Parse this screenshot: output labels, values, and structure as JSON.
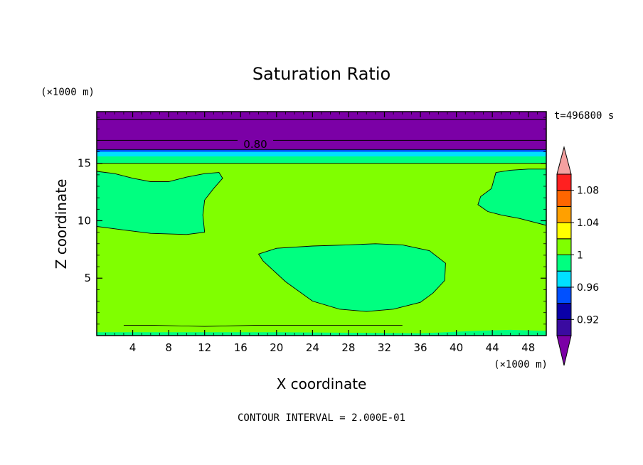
{
  "chart_data": {
    "type": "contour",
    "title": "Saturation Ratio",
    "xlabel": "X coordinate",
    "ylabel": "Z coordinate",
    "x_unit": "(×1000 m)",
    "z_unit": "(×1000 m)",
    "time_label": "t=496800 s",
    "footer": "CONTOUR INTERVAL = 2.000E-01",
    "contour_label": "0.80",
    "xlim": [
      0,
      50
    ],
    "zlim": [
      0,
      19.5
    ],
    "x_ticks": [
      4,
      8,
      12,
      16,
      20,
      24,
      28,
      32,
      36,
      40,
      44,
      48
    ],
    "z_ticks": [
      5,
      10,
      15
    ],
    "fill_levels": [
      {
        "range": "< 0.90",
        "color": "#7b00a6"
      },
      {
        "range": "0.90-0.92",
        "color": "#3a0aa0"
      },
      {
        "range": "0.92-0.94",
        "color": "#0a00a8"
      },
      {
        "range": "0.94-0.96",
        "color": "#0050ff"
      },
      {
        "range": "0.96-0.98",
        "color": "#00e0ff"
      },
      {
        "range": "0.98-1.00",
        "color": "#00ff80"
      },
      {
        "range": "1.00-1.02",
        "color": "#80ff00"
      },
      {
        "range": "1.02-1.04",
        "color": "#ffff00"
      },
      {
        "range": "1.04-1.06",
        "color": "#ffa000"
      },
      {
        "range": "1.06-1.08",
        "color": "#ff6600"
      },
      {
        "range": "1.08-1.10",
        "color": "#ff2020"
      },
      {
        "range": "> 1.10",
        "color": "#f4a0a0"
      }
    ],
    "colorbar_labels": [
      {
        "value": 0.92,
        "label": "0.92"
      },
      {
        "value": 0.96,
        "label": "0.96"
      },
      {
        "value": 1.0,
        "label": "1"
      },
      {
        "value": 1.04,
        "label": "1.04"
      },
      {
        "value": 1.08,
        "label": "1.08"
      }
    ],
    "regions": [
      {
        "name": "background",
        "color": "#80ff00",
        "points": [
          [
            0,
            0
          ],
          [
            50,
            0
          ],
          [
            50,
            15
          ],
          [
            0,
            15
          ]
        ]
      },
      {
        "name": "upper-dry-layer",
        "color": "#7b00a6",
        "points": [
          [
            0,
            16.2
          ],
          [
            50,
            16.2
          ],
          [
            50,
            19.5
          ],
          [
            0,
            19.5
          ]
        ]
      },
      {
        "name": "transition-band-top",
        "color": "#0050ff",
        "points": [
          [
            0,
            16.0
          ],
          [
            50,
            16.0
          ],
          [
            50,
            16.2
          ],
          [
            0,
            16.2
          ]
        ]
      },
      {
        "name": "transition-band",
        "color": "#00ff80",
        "points": [
          [
            0,
            15.0
          ],
          [
            50,
            15.0
          ],
          [
            50,
            16.0
          ],
          [
            0,
            16.0
          ]
        ]
      },
      {
        "name": "transition-cyan",
        "color": "#00e0ff",
        "points": [
          [
            0,
            15.6
          ],
          [
            50,
            15.6
          ],
          [
            50,
            16.0
          ],
          [
            0,
            16.0
          ]
        ]
      },
      {
        "name": "surface-band",
        "color": "#00ff80",
        "points": [
          [
            0,
            0
          ],
          [
            50,
            0
          ],
          [
            50,
            0.4
          ],
          [
            46,
            0.5
          ],
          [
            42,
            0.4
          ],
          [
            36,
            0.2
          ],
          [
            20,
            0.3
          ],
          [
            10,
            0.3
          ],
          [
            0,
            0.3
          ]
        ]
      },
      {
        "name": "moist-patch-left",
        "color": "#00ff80",
        "points": [
          [
            0,
            14.3
          ],
          [
            2,
            14.1
          ],
          [
            4,
            13.7
          ],
          [
            6,
            13.4
          ],
          [
            8,
            13.4
          ],
          [
            10,
            13.8
          ],
          [
            12,
            14.1
          ],
          [
            13.6,
            14.2
          ],
          [
            14,
            13.7
          ],
          [
            13,
            12.8
          ],
          [
            12,
            11.8
          ],
          [
            11.8,
            10.5
          ],
          [
            12,
            9.0
          ],
          [
            10,
            8.8
          ],
          [
            6,
            8.9
          ],
          [
            3,
            9.2
          ],
          [
            0,
            9.5
          ]
        ]
      },
      {
        "name": "moist-patch-center",
        "color": "#00ff80",
        "points": [
          [
            18,
            7.1
          ],
          [
            20,
            7.6
          ],
          [
            24,
            7.8
          ],
          [
            28,
            7.9
          ],
          [
            31,
            8.0
          ],
          [
            34,
            7.9
          ],
          [
            37,
            7.4
          ],
          [
            38.8,
            6.3
          ],
          [
            38.7,
            4.8
          ],
          [
            37.4,
            3.7
          ],
          [
            36,
            2.9
          ],
          [
            33,
            2.3
          ],
          [
            30,
            2.1
          ],
          [
            27,
            2.3
          ],
          [
            24,
            3.0
          ],
          [
            21,
            4.7
          ],
          [
            18.5,
            6.5
          ]
        ]
      },
      {
        "name": "moist-patch-right",
        "color": "#00ff80",
        "points": [
          [
            50,
            14.5
          ],
          [
            48,
            14.5
          ],
          [
            46,
            14.4
          ],
          [
            44.4,
            14.2
          ],
          [
            43.9,
            12.8
          ],
          [
            42.7,
            12.1
          ],
          [
            42.4,
            11.4
          ],
          [
            43.5,
            10.8
          ],
          [
            45,
            10.5
          ],
          [
            47,
            10.2
          ],
          [
            50,
            9.6
          ]
        ]
      }
    ],
    "contour_lines": [
      {
        "name": "contour-0.80",
        "z": 17.0,
        "x_range": [
          0,
          50
        ]
      },
      {
        "name": "contour-upper",
        "z": 18.8,
        "x_range": [
          0,
          50
        ]
      }
    ]
  }
}
